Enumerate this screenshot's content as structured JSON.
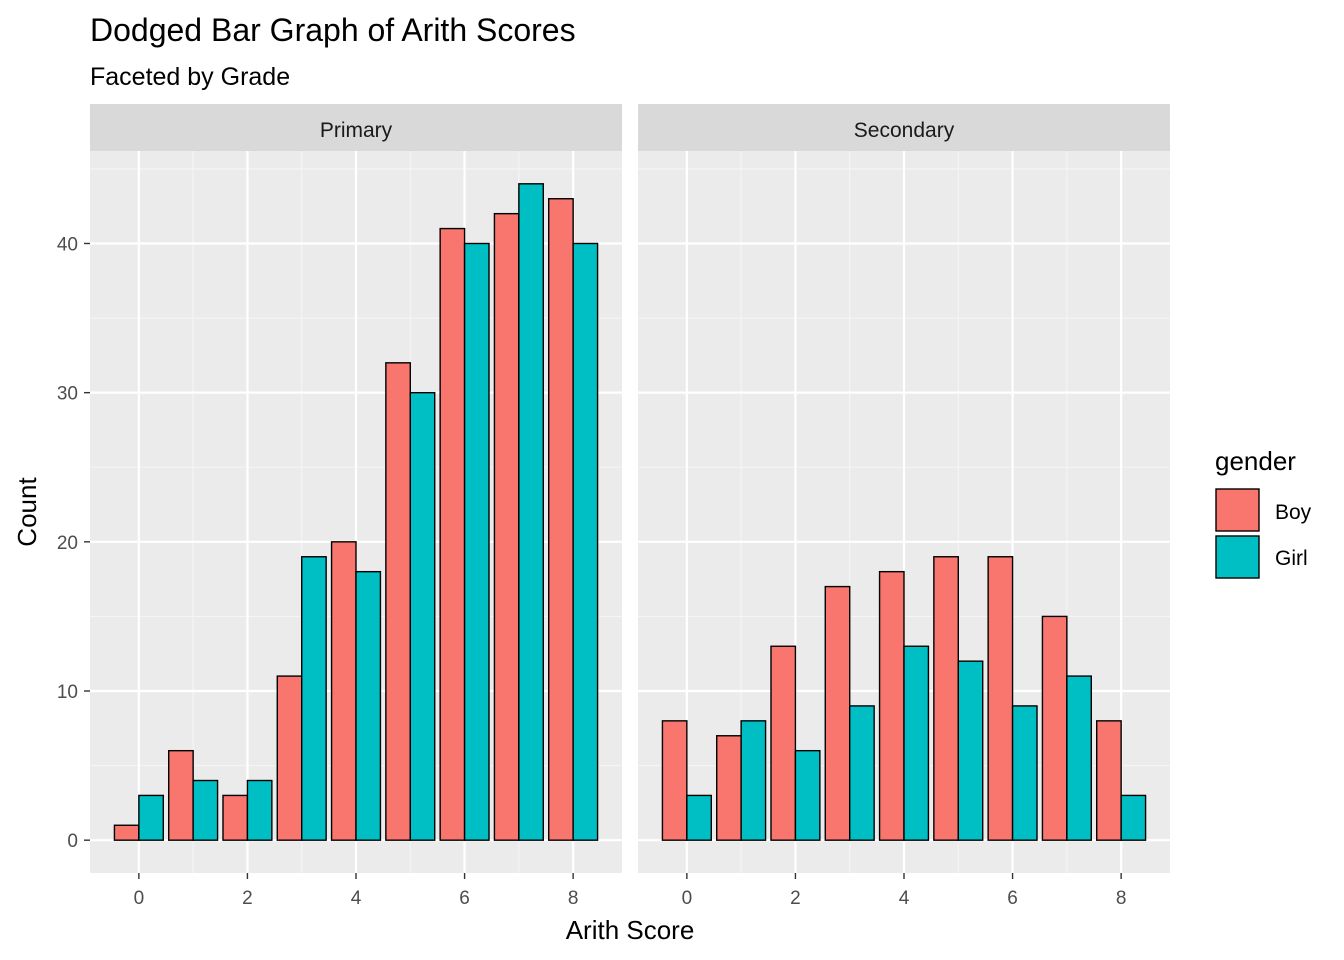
{
  "chart_data": {
    "type": "bar",
    "title": "Dodged Bar Graph of Arith Scores",
    "subtitle": "Faceted by Grade",
    "xlabel": "Arith Score",
    "ylabel": "Count",
    "x_ticks": [
      0,
      2,
      4,
      6,
      8
    ],
    "y_ticks": [
      0,
      10,
      20,
      30,
      40
    ],
    "xlim": [
      -0.9,
      8.9
    ],
    "ylim": [
      -2.2,
      46.2
    ],
    "grid": true,
    "legend": {
      "title": "gender",
      "position": "right",
      "entries": [
        {
          "name": "Boy",
          "color": "#F8766D"
        },
        {
          "name": "Girl",
          "color": "#00BFC4"
        }
      ]
    },
    "facets": [
      {
        "label": "Primary",
        "x": [
          0,
          1,
          2,
          3,
          4,
          5,
          6,
          7,
          8
        ],
        "series": [
          {
            "name": "Boy",
            "values": [
              1,
              6,
              3,
              11,
              20,
              32,
              41,
              42,
              43
            ]
          },
          {
            "name": "Girl",
            "values": [
              3,
              4,
              4,
              19,
              18,
              30,
              40,
              44,
              40
            ]
          }
        ]
      },
      {
        "label": "Secondary",
        "x": [
          0,
          1,
          2,
          3,
          4,
          5,
          6,
          7,
          8
        ],
        "series": [
          {
            "name": "Boy",
            "values": [
              8,
              7,
              13,
              17,
              18,
              19,
              19,
              15,
              8
            ]
          },
          {
            "name": "Girl",
            "values": [
              3,
              8,
              6,
              9,
              13,
              12,
              9,
              11,
              3
            ]
          }
        ]
      }
    ]
  }
}
